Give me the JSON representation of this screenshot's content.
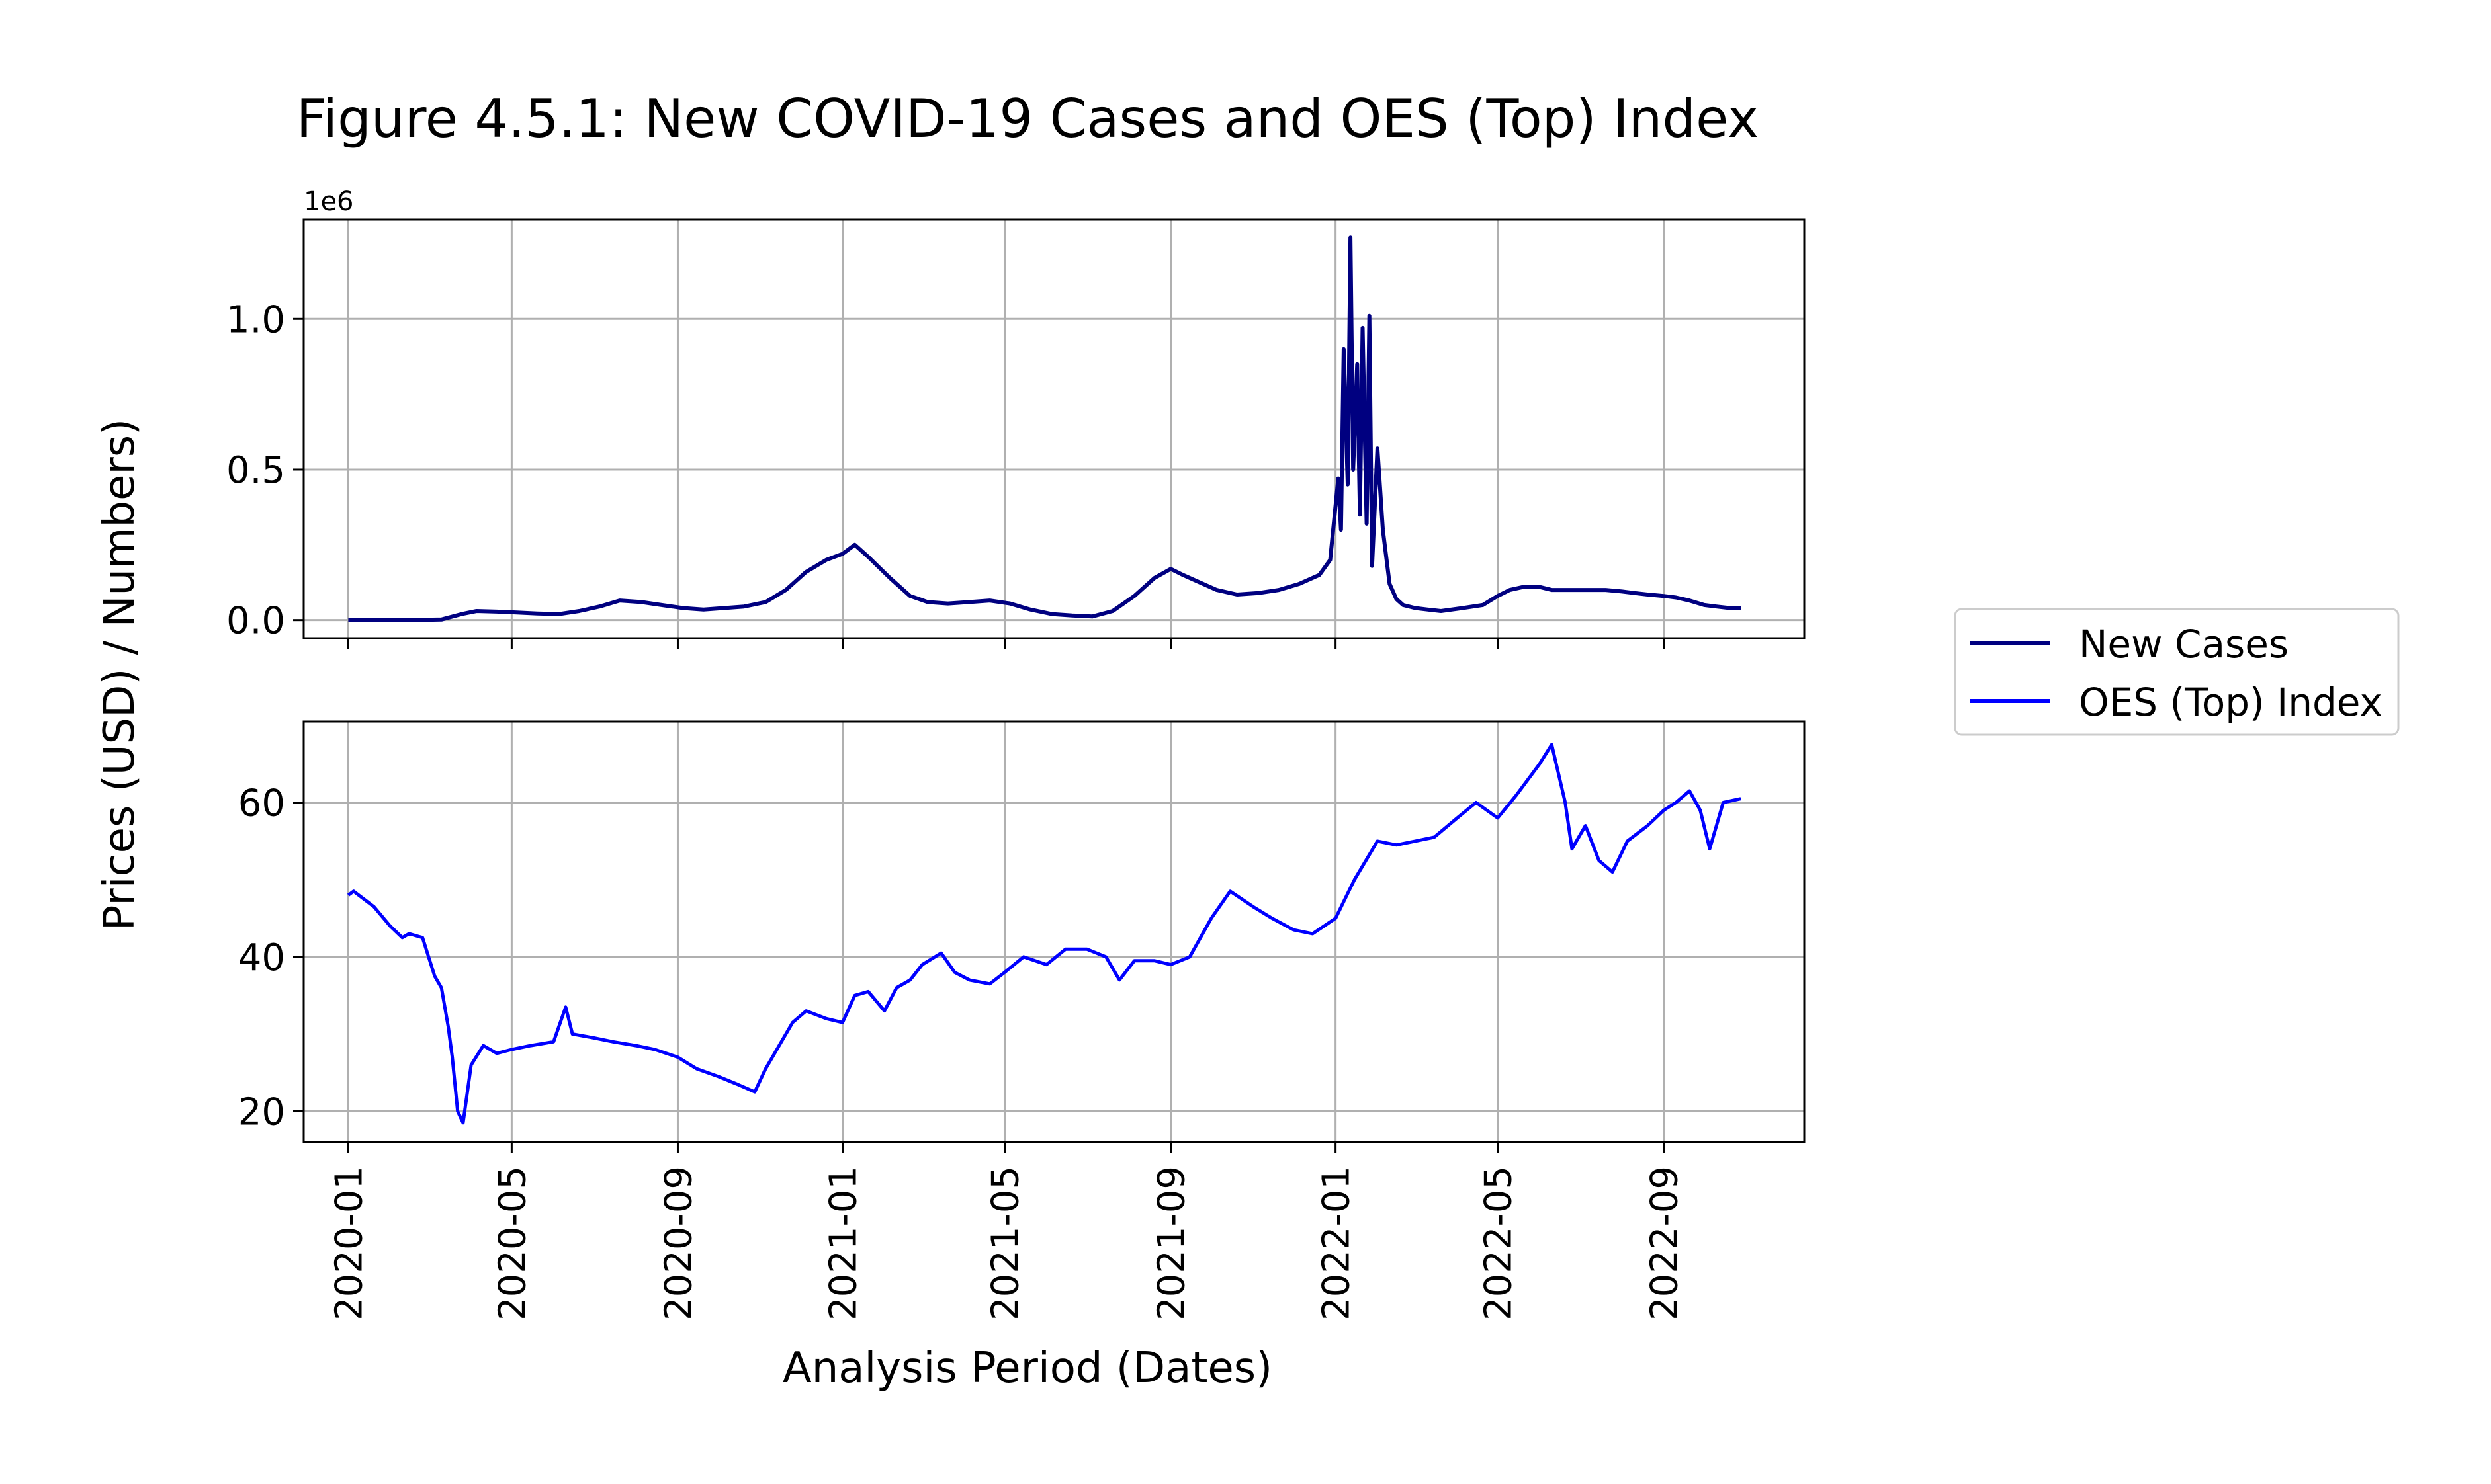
{
  "figure": {
    "title": "Figure 4.5.1: New COVID-19 Cases and OES (Top) Index",
    "ylabel": "Prices (USD) / Numbers)",
    "xlabel": "Analysis Period (Dates)"
  },
  "legend": {
    "placement": "right",
    "entries": [
      {
        "label": "New Cases",
        "color": "#000080"
      },
      {
        "label": "OES (Top) Index",
        "color": "#0000ff"
      }
    ]
  },
  "chart_data": [
    {
      "type": "line",
      "panel": "top",
      "xaxis_type": "date",
      "xlim": [
        "2019-11-29",
        "2022-12-14"
      ],
      "ylim": [
        -60000,
        1330000
      ],
      "offset_label": "1e6",
      "yticks": [
        0,
        500000,
        1000000
      ],
      "ytick_labels": [
        "0.0",
        "0.5",
        "1.0"
      ],
      "grid": true,
      "series": [
        {
          "name": "New Cases",
          "color": "#000080",
          "x": [
            "2020-01-01",
            "2020-02-15",
            "2020-03-10",
            "2020-03-25",
            "2020-04-05",
            "2020-04-20",
            "2020-05-05",
            "2020-05-20",
            "2020-06-05",
            "2020-06-20",
            "2020-07-05",
            "2020-07-20",
            "2020-08-05",
            "2020-08-20",
            "2020-09-05",
            "2020-09-20",
            "2020-10-05",
            "2020-10-20",
            "2020-11-05",
            "2020-11-20",
            "2020-12-05",
            "2020-12-20",
            "2021-01-01",
            "2021-01-10",
            "2021-01-20",
            "2021-02-05",
            "2021-02-20",
            "2021-03-05",
            "2021-03-20",
            "2021-04-05",
            "2021-04-20",
            "2021-05-05",
            "2021-05-20",
            "2021-06-05",
            "2021-06-20",
            "2021-07-05",
            "2021-07-20",
            "2021-08-05",
            "2021-08-20",
            "2021-09-01",
            "2021-09-10",
            "2021-09-20",
            "2021-10-05",
            "2021-10-20",
            "2021-11-05",
            "2021-11-20",
            "2021-12-05",
            "2021-12-20",
            "2021-12-28",
            "2022-01-03",
            "2022-01-05",
            "2022-01-07",
            "2022-01-10",
            "2022-01-12",
            "2022-01-14",
            "2022-01-17",
            "2022-01-19",
            "2022-01-21",
            "2022-01-24",
            "2022-01-26",
            "2022-01-28",
            "2022-02-01",
            "2022-02-05",
            "2022-02-10",
            "2022-02-15",
            "2022-02-20",
            "2022-03-01",
            "2022-03-10",
            "2022-03-20",
            "2022-04-05",
            "2022-04-20",
            "2022-05-01",
            "2022-05-10",
            "2022-05-20",
            "2022-06-01",
            "2022-06-10",
            "2022-06-20",
            "2022-07-01",
            "2022-07-10",
            "2022-07-20",
            "2022-08-01",
            "2022-08-10",
            "2022-08-20",
            "2022-09-01",
            "2022-09-10",
            "2022-09-20",
            "2022-10-01",
            "2022-10-10",
            "2022-10-20",
            "2022-10-28"
          ],
          "y": [
            0,
            0,
            2000,
            20000,
            30000,
            28000,
            25000,
            22000,
            20000,
            30000,
            45000,
            65000,
            60000,
            50000,
            40000,
            35000,
            40000,
            45000,
            60000,
            100000,
            160000,
            200000,
            220000,
            250000,
            210000,
            140000,
            80000,
            60000,
            55000,
            60000,
            65000,
            55000,
            35000,
            20000,
            15000,
            12000,
            30000,
            80000,
            140000,
            170000,
            150000,
            130000,
            100000,
            85000,
            90000,
            100000,
            120000,
            150000,
            200000,
            470000,
            300000,
            900000,
            450000,
            1270000,
            500000,
            850000,
            350000,
            970000,
            320000,
            1010000,
            180000,
            570000,
            300000,
            120000,
            70000,
            50000,
            40000,
            35000,
            30000,
            40000,
            50000,
            80000,
            100000,
            110000,
            110000,
            100000,
            100000,
            100000,
            100000,
            100000,
            95000,
            90000,
            85000,
            80000,
            75000,
            65000,
            50000,
            45000,
            40000,
            40000
          ]
        }
      ]
    },
    {
      "type": "line",
      "panel": "bottom",
      "xaxis_type": "date",
      "xlim": [
        "2019-11-29",
        "2022-12-14"
      ],
      "ylim": [
        16,
        70.5
      ],
      "yticks": [
        20,
        40,
        60
      ],
      "ytick_labels": [
        "20",
        "40",
        "60"
      ],
      "xticks": [
        "2020-01-01",
        "2020-05-01",
        "2020-09-01",
        "2021-01-01",
        "2021-05-01",
        "2021-09-01",
        "2022-01-01",
        "2022-05-01",
        "2022-09-01"
      ],
      "xtick_labels": [
        "2020-01",
        "2020-05",
        "2020-09",
        "2021-01",
        "2021-05",
        "2021-09",
        "2022-01",
        "2022-05",
        "2022-09"
      ],
      "grid": true,
      "series": [
        {
          "name": "OES (Top) Index",
          "color": "#0000ff",
          "x": [
            "2020-01-01",
            "2020-01-05",
            "2020-01-20",
            "2020-02-01",
            "2020-02-10",
            "2020-02-15",
            "2020-02-25",
            "2020-03-05",
            "2020-03-10",
            "2020-03-15",
            "2020-03-18",
            "2020-03-22",
            "2020-03-26",
            "2020-04-01",
            "2020-04-10",
            "2020-04-20",
            "2020-05-01",
            "2020-05-15",
            "2020-06-01",
            "2020-06-10",
            "2020-06-15",
            "2020-07-01",
            "2020-07-15",
            "2020-08-01",
            "2020-08-15",
            "2020-09-01",
            "2020-09-15",
            "2020-10-01",
            "2020-10-15",
            "2020-10-28",
            "2020-11-05",
            "2020-11-15",
            "2020-11-25",
            "2020-12-05",
            "2020-12-20",
            "2021-01-01",
            "2021-01-10",
            "2021-01-20",
            "2021-02-01",
            "2021-02-10",
            "2021-02-20",
            "2021-03-01",
            "2021-03-15",
            "2021-03-25",
            "2021-04-05",
            "2021-04-20",
            "2021-05-01",
            "2021-05-15",
            "2021-06-01",
            "2021-06-15",
            "2021-07-01",
            "2021-07-15",
            "2021-07-25",
            "2021-08-05",
            "2021-08-20",
            "2021-09-01",
            "2021-09-15",
            "2021-10-01",
            "2021-10-15",
            "2021-11-01",
            "2021-11-15",
            "2021-12-01",
            "2021-12-15",
            "2022-01-01",
            "2022-01-15",
            "2022-02-01",
            "2022-02-15",
            "2022-03-01",
            "2022-03-15",
            "2022-04-01",
            "2022-04-15",
            "2022-05-01",
            "2022-05-15",
            "2022-06-01",
            "2022-06-10",
            "2022-06-20",
            "2022-06-25",
            "2022-07-05",
            "2022-07-15",
            "2022-07-25",
            "2022-08-05",
            "2022-08-20",
            "2022-09-01",
            "2022-09-10",
            "2022-09-20",
            "2022-09-28",
            "2022-10-05",
            "2022-10-15",
            "2022-10-28"
          ],
          "y": [
            48,
            48.5,
            46.5,
            44,
            42.5,
            43,
            42.5,
            37.5,
            36,
            31,
            27,
            20,
            18.5,
            26,
            28.5,
            27.5,
            28,
            28.5,
            29,
            33.5,
            30,
            29.5,
            29,
            28.5,
            28,
            27,
            25.5,
            24.5,
            23.5,
            22.5,
            25.5,
            28.5,
            31.5,
            33,
            32,
            31.5,
            35,
            35.5,
            33,
            36,
            37,
            39,
            40.5,
            38,
            37,
            36.5,
            38,
            40,
            39,
            41,
            41,
            40,
            37,
            39.5,
            39.5,
            39,
            40,
            45,
            48.5,
            46.5,
            45,
            43.5,
            43,
            45,
            50,
            55,
            54.5,
            55,
            55.5,
            58,
            60,
            58,
            61,
            65,
            67.5,
            60,
            54,
            57,
            52.5,
            51,
            55,
            57,
            59,
            60,
            61.5,
            59,
            54,
            60,
            60.5
          ]
        }
      ]
    }
  ]
}
